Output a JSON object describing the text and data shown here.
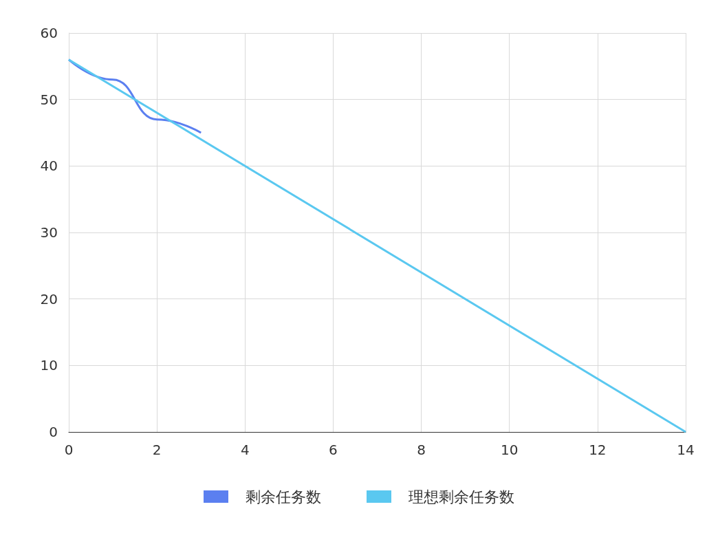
{
  "chart_data": {
    "type": "line",
    "x": [
      0,
      1,
      2,
      3
    ],
    "series": [
      {
        "name": "剩余任务数",
        "color": "#5b7ff0",
        "values": [
          56,
          53,
          47,
          45
        ]
      },
      {
        "name": "理想剩余任务数",
        "color": "#5ac8f0",
        "x": [
          0,
          14
        ],
        "values": [
          56,
          0
        ]
      }
    ],
    "xlim": [
      0,
      14
    ],
    "xticks": [
      0,
      2,
      4,
      6,
      8,
      10,
      12,
      14
    ],
    "ylim": [
      0,
      60
    ],
    "yticks": [
      0,
      10,
      20,
      30,
      40,
      50,
      60
    ],
    "grid": true,
    "legend": "bottom",
    "marker": "none",
    "line_style": "solid"
  }
}
